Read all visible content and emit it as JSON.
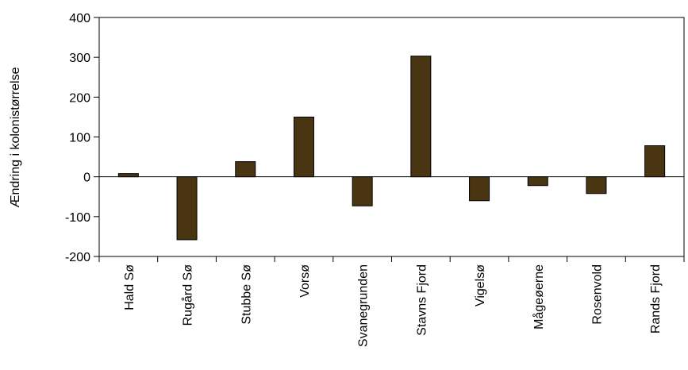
{
  "chart_data": {
    "type": "bar",
    "title": "",
    "xlabel": "",
    "ylabel": "Ændring i kolonistørrelse",
    "ylim": [
      -200,
      400
    ],
    "yticks": [
      "400",
      "300",
      "200",
      "100",
      "0",
      "-100",
      "-200"
    ],
    "grid": false,
    "categories": [
      "Hald Sø",
      "Rugård Sø",
      "Stubbe Sø",
      "Vorsø",
      "Svanegrunden",
      "Stavns Fjord",
      "Vigelsø",
      "Mågeøerne",
      "Rosenvold",
      "Rands Fjord"
    ],
    "values": [
      8,
      -158,
      38,
      150,
      -73,
      303,
      -60,
      -22,
      -42,
      78
    ],
    "bar_color": "#4a3513"
  }
}
